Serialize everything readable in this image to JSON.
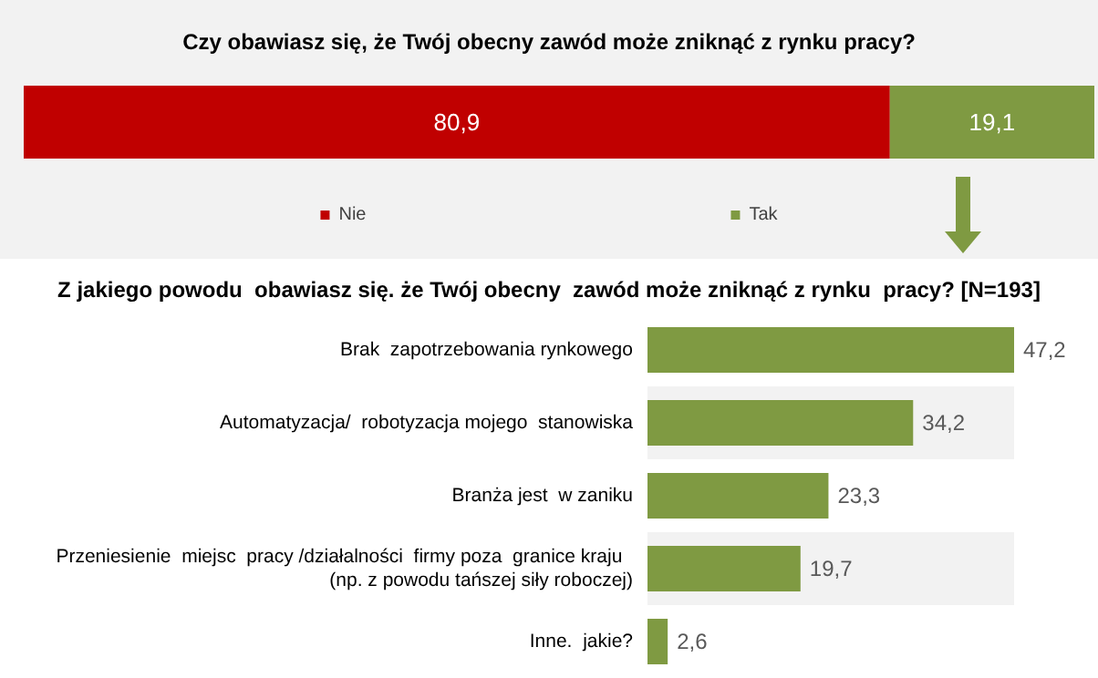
{
  "chart_data": [
    {
      "type": "bar",
      "title": "Czy obawiasz się, że Twój obecny zawód może zniknąć z rynku pracy?",
      "orientation": "horizontal",
      "stacked": true,
      "categories": [
        null
      ],
      "series": [
        {
          "name": "Nie",
          "color": "#c00000",
          "values": [
            80.9
          ],
          "value_labels": [
            "80,9"
          ]
        },
        {
          "name": "Tak",
          "color": "#7f9a42",
          "values": [
            19.1
          ],
          "value_labels": [
            "19,1"
          ]
        }
      ],
      "legend": "bottom",
      "tick_labels": false
    },
    {
      "type": "bar",
      "title": "Z jakiego powodu  obawiasz się. że Twój obecny  zawód może zniknąć z rynku  pracy? [N=193]",
      "orientation": "horizontal",
      "categories": [
        "Brak  zapotrzebowania rynkowego",
        "Automatyzacja/  robotyzacja mojego  stanowiska",
        "Branża jest  w zaniku",
        "Przeniesienie  miejsc  pracy /działalności  firmy poza  granice kraju  (np. z powodu tańszej siły roboczej)",
        "Inne.  jakie?"
      ],
      "values": [
        47.2,
        34.2,
        23.3,
        19.7,
        2.6
      ],
      "value_labels": [
        "47,2",
        "34,2",
        "23,3",
        "19,7",
        "2,6"
      ],
      "color": "#7f9a42",
      "tick_labels": "y"
    }
  ]
}
